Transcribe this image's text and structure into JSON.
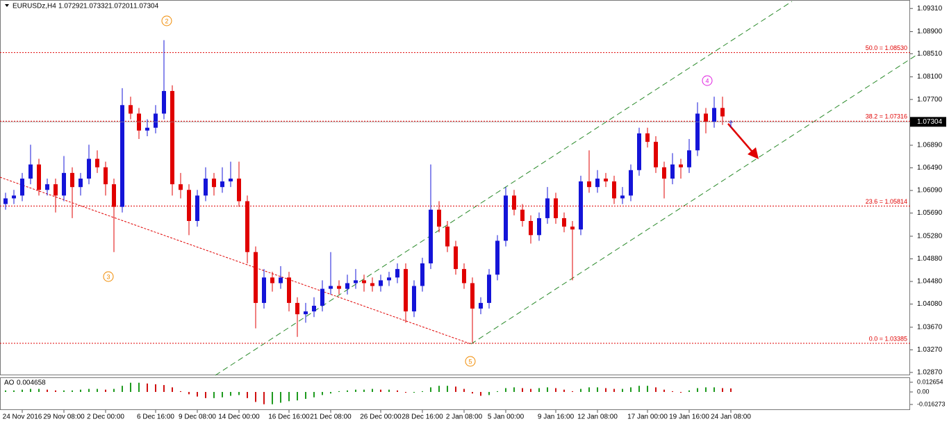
{
  "chart_data": {
    "type": "candlestick",
    "symbol": "EURUSDz,H4",
    "up_color": "#1414d8",
    "down_color": "#e00000",
    "categories": [
      null,
      null,
      "24 Nov 2016",
      null,
      null,
      null,
      null,
      "29 Nov 08:00",
      null,
      null,
      null,
      null,
      "2 Dec 00:00",
      null,
      null,
      null,
      null,
      null,
      "6 Dec 16:00",
      null,
      null,
      null,
      null,
      "9 Dec 08:00",
      null,
      null,
      null,
      null,
      "14 Dec 00:00",
      null,
      null,
      null,
      null,
      null,
      "16 Dec 16:00",
      null,
      null,
      null,
      null,
      "21 Dec 08:00",
      null,
      null,
      null,
      null,
      null,
      "26 Dec 00:00",
      null,
      null,
      null,
      null,
      "28 Dec 16:00",
      null,
      null,
      null,
      null,
      "2 Jan 08:00",
      null,
      null,
      null,
      null,
      "5 Jan 00:00",
      null,
      null,
      null,
      null,
      null,
      "9 Jan 16:00",
      null,
      null,
      null,
      null,
      "12 Jan 08:00",
      null,
      null,
      null,
      null,
      null,
      "17 Jan 00:00",
      null,
      null,
      null,
      null,
      "19 Jan 16:00",
      null,
      null,
      null,
      null,
      "24 Jan 08:00"
    ],
    "ohlc": [
      [
        1.0585,
        1.0605,
        1.0575,
        1.0595
      ],
      [
        1.0595,
        1.061,
        1.0585,
        1.06
      ],
      [
        1.06,
        1.064,
        1.059,
        1.063
      ],
      [
        1.063,
        1.069,
        1.062,
        1.0655
      ],
      [
        1.0655,
        1.0665,
        1.06,
        1.061
      ],
      [
        1.061,
        1.063,
        1.06,
        1.062
      ],
      [
        1.062,
        1.063,
        1.057,
        1.06
      ],
      [
        1.06,
        1.067,
        1.059,
        1.064
      ],
      [
        1.064,
        1.065,
        1.056,
        1.0615
      ],
      [
        1.0615,
        1.064,
        1.06,
        1.063
      ],
      [
        1.063,
        1.069,
        1.062,
        1.0665
      ],
      [
        1.0665,
        1.068,
        1.064,
        1.065
      ],
      [
        1.065,
        1.066,
        1.06,
        1.062
      ],
      [
        1.062,
        1.063,
        1.05,
        1.058
      ],
      [
        1.058,
        1.079,
        1.057,
        1.076
      ],
      [
        1.076,
        1.0775,
        1.0735,
        1.0745
      ],
      [
        1.0745,
        1.0755,
        1.07,
        1.0715
      ],
      [
        1.0715,
        1.0735,
        1.0705,
        1.072
      ],
      [
        1.072,
        1.076,
        1.071,
        1.0745
      ],
      [
        1.0745,
        1.0875,
        1.0735,
        1.0785
      ],
      [
        1.0785,
        1.0795,
        1.06,
        1.062
      ],
      [
        1.062,
        1.064,
        1.0595,
        1.061
      ],
      [
        1.061,
        1.062,
        1.053,
        1.0555
      ],
      [
        1.0555,
        1.061,
        1.0545,
        1.06
      ],
      [
        1.06,
        1.065,
        1.059,
        1.063
      ],
      [
        1.063,
        1.064,
        1.06,
        1.0615
      ],
      [
        1.0615,
        1.065,
        1.0605,
        1.0625
      ],
      [
        1.0625,
        1.066,
        1.0615,
        1.063
      ],
      [
        1.063,
        1.066,
        1.058,
        1.059
      ],
      [
        1.059,
        1.06,
        1.048,
        1.05
      ],
      [
        1.05,
        1.051,
        1.0365,
        1.041
      ],
      [
        1.041,
        1.047,
        1.04,
        1.0455
      ],
      [
        1.0455,
        1.0465,
        1.043,
        1.0445
      ],
      [
        1.0445,
        1.0475,
        1.0435,
        1.0455
      ],
      [
        1.0455,
        1.0465,
        1.0395,
        1.041
      ],
      [
        1.041,
        1.042,
        1.035,
        1.039
      ],
      [
        1.039,
        1.041,
        1.0375,
        1.0395
      ],
      [
        1.0395,
        1.042,
        1.0385,
        1.0405
      ],
      [
        1.0405,
        1.045,
        1.0395,
        1.0435
      ],
      [
        1.0435,
        1.05,
        1.0425,
        1.044
      ],
      [
        1.044,
        1.045,
        1.0425,
        1.0435
      ],
      [
        1.0435,
        1.046,
        1.0425,
        1.0445
      ],
      [
        1.0445,
        1.047,
        1.0435,
        1.045
      ],
      [
        1.045,
        1.046,
        1.043,
        1.0445
      ],
      [
        1.0445,
        1.0455,
        1.043,
        1.044
      ],
      [
        1.044,
        1.046,
        1.043,
        1.045
      ],
      [
        1.045,
        1.0465,
        1.044,
        1.0455
      ],
      [
        1.0455,
        1.048,
        1.0445,
        1.047
      ],
      [
        1.047,
        1.048,
        1.0375,
        1.0395
      ],
      [
        1.0395,
        1.045,
        1.0385,
        1.044
      ],
      [
        1.044,
        1.049,
        1.043,
        1.048
      ],
      [
        1.048,
        1.0655,
        1.047,
        1.0575
      ],
      [
        1.0575,
        1.059,
        1.0535,
        1.0545
      ],
      [
        1.0545,
        1.0555,
        1.05,
        1.051
      ],
      [
        1.051,
        1.052,
        1.046,
        1.047
      ],
      [
        1.047,
        1.048,
        1.0435,
        1.0445
      ],
      [
        1.0445,
        1.0455,
        1.034,
        1.04
      ],
      [
        1.04,
        1.042,
        1.039,
        1.041
      ],
      [
        1.041,
        1.047,
        1.04,
        1.046
      ],
      [
        1.046,
        1.053,
        1.045,
        1.052
      ],
      [
        1.052,
        1.0615,
        1.051,
        1.06
      ],
      [
        1.06,
        1.061,
        1.0565,
        1.0575
      ],
      [
        1.0575,
        1.0585,
        1.0545,
        1.0555
      ],
      [
        1.0555,
        1.0565,
        1.0515,
        1.053
      ],
      [
        1.053,
        1.057,
        1.052,
        1.056
      ],
      [
        1.056,
        1.0615,
        1.055,
        1.0595
      ],
      [
        1.0595,
        1.0605,
        1.055,
        1.056
      ],
      [
        1.056,
        1.057,
        1.0535,
        1.0545
      ],
      [
        1.0545,
        1.0555,
        1.045,
        1.054
      ],
      [
        1.054,
        1.0635,
        1.053,
        1.0625
      ],
      [
        1.0625,
        1.068,
        1.0605,
        1.0615
      ],
      [
        1.0615,
        1.0645,
        1.0605,
        1.063
      ],
      [
        1.063,
        1.064,
        1.0615,
        1.0625
      ],
      [
        1.0625,
        1.0635,
        1.0585,
        1.0595
      ],
      [
        1.0595,
        1.0615,
        1.0585,
        1.06
      ],
      [
        1.06,
        1.0655,
        1.059,
        1.0645
      ],
      [
        1.0645,
        1.072,
        1.0635,
        1.071
      ],
      [
        1.071,
        1.072,
        1.0685,
        1.0695
      ],
      [
        1.0695,
        1.0705,
        1.064,
        1.065
      ],
      [
        1.065,
        1.066,
        1.0595,
        1.063
      ],
      [
        1.063,
        1.0675,
        1.062,
        1.0655
      ],
      [
        1.0655,
        1.0665,
        1.063,
        1.065
      ],
      [
        1.065,
        1.07,
        1.064,
        1.068
      ],
      [
        1.068,
        1.0765,
        1.067,
        1.0745
      ],
      [
        1.0745,
        1.0755,
        1.071,
        1.073
      ],
      [
        1.073,
        1.0775,
        1.072,
        1.0755
      ],
      [
        1.0755,
        1.0775,
        1.0725,
        1.074
      ],
      [
        1.07292,
        1.07332,
        1.07201,
        1.07304
      ]
    ],
    "ylim": [
      1.0282,
      1.0946
    ],
    "yticks": [
      {
        "value": 1.0931,
        "label": "1.09310"
      },
      {
        "value": 1.089,
        "label": "1.08900"
      },
      {
        "value": 1.0851,
        "label": "1.08510"
      },
      {
        "value": 1.081,
        "label": "1.08100"
      },
      {
        "value": 1.077,
        "label": "1.07700"
      },
      {
        "value": 1.0689,
        "label": "1.06890"
      },
      {
        "value": 1.0649,
        "label": "1.06490"
      },
      {
        "value": 1.0609,
        "label": "1.06090"
      },
      {
        "value": 1.0569,
        "label": "1.05690"
      },
      {
        "value": 1.0528,
        "label": "1.05280"
      },
      {
        "value": 1.0488,
        "label": "1.04880"
      },
      {
        "value": 1.0448,
        "label": "1.04480"
      },
      {
        "value": 1.0408,
        "label": "1.04080"
      },
      {
        "value": 1.0367,
        "label": "1.03670"
      },
      {
        "value": 1.0327,
        "label": "1.03270"
      },
      {
        "value": 1.0287,
        "label": "1.02870"
      }
    ],
    "fib_levels": [
      {
        "value": 1.0853,
        "label": "50.0 = 1.08530"
      },
      {
        "value": 1.07316,
        "label": "38.2 = 1.07316"
      },
      {
        "value": 1.05814,
        "label": "23.6 = 1.05814"
      },
      {
        "value": 1.03385,
        "label": "0.0 = 1.03385"
      }
    ],
    "annotations": [
      "2",
      "3",
      "5",
      "4"
    ],
    "ao": {
      "name": "AO",
      "up_color": "#1e9a1e",
      "down_color": "#d01010",
      "values": [
        0.002,
        0.002,
        0.003,
        0.004,
        0.004,
        0.003,
        0.002,
        0.002,
        0.002,
        0.003,
        0.004,
        0.004,
        0.003,
        0.004,
        0.008,
        0.012,
        0.012,
        0.011,
        0.01,
        0.009,
        0.006,
        0.001,
        -0.003,
        -0.006,
        -0.008,
        -0.008,
        -0.007,
        -0.005,
        -0.004,
        -0.008,
        -0.013,
        -0.016,
        -0.016,
        -0.014,
        -0.012,
        -0.011,
        -0.009,
        -0.007,
        -0.004,
        -0.002,
        0.001,
        0.002,
        0.003,
        0.003,
        0.004,
        0.003,
        0.003,
        0.002,
        -0.001,
        -0.001,
        0.001,
        0.006,
        0.008,
        0.008,
        0.007,
        0.004,
        -0.002,
        -0.005,
        -0.004,
        0.001,
        0.005,
        0.006,
        0.005,
        0.004,
        0.005,
        0.006,
        0.005,
        0.003,
        0.001,
        0.004,
        0.006,
        0.006,
        0.005,
        0.004,
        0.004,
        0.006,
        0.008,
        0.008,
        0.006,
        0.003,
        0.001,
        -0.001,
        0.002,
        0.005,
        0.006,
        0.006,
        0.005,
        0.004658
      ],
      "ylim": [
        -0.0235,
        0.019
      ],
      "yticks": [
        0.012654,
        {
          "value": 0,
          "label": "0.00"
        },
        -0.016273
      ]
    }
  }
}
